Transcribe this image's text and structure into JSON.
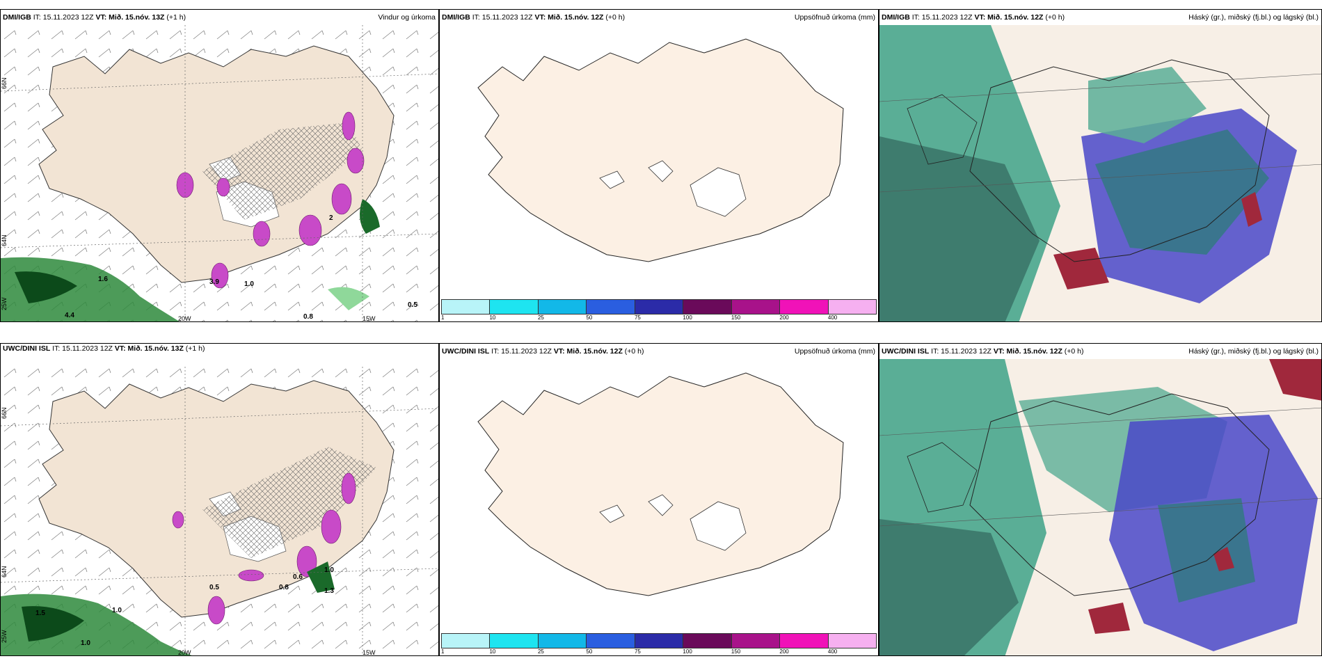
{
  "panels": [
    {
      "model": "DMI/IGB",
      "it": " IT: 15.11.2023 12Z ",
      "vt_label": "VT:",
      "vt": " Mið. 15.nóv. 13Z",
      "lead": " (+1 h)",
      "title": "Vindur og úrkoma"
    },
    {
      "model": "DMI/IGB",
      "it": " IT: 15.11.2023 12Z ",
      "vt_label": "VT:",
      "vt": " Mið. 15.nóv. 12Z",
      "lead": " (+0 h)",
      "title": "Uppsöfnuð úrkoma (mm)"
    },
    {
      "model": "DMI/IGB",
      "it": " IT: 15.11.2023 12Z ",
      "vt_label": "VT:",
      "vt": " Mið. 15.nóv. 12Z",
      "lead": " (+0 h)",
      "title": "Háský (gr.), miðský (fj.bl.) og lágský (bl.)"
    },
    {
      "model": "UWC/DINI ISL",
      "it": " IT: 15.11.2023 12Z ",
      "vt_label": "VT:",
      "vt": " Mið. 15.nóv. 13Z",
      "lead": " (+1 h)",
      "title": ""
    },
    {
      "model": "UWC/DINI ISL",
      "it": " IT: 15.11.2023 12Z ",
      "vt_label": "VT:",
      "vt": " Mið. 15.nóv. 12Z",
      "lead": " (+0 h)",
      "title": "Uppsöfnuð úrkoma (mm)"
    },
    {
      "model": "UWC/DINI ISL",
      "it": " IT: 15.11.2023 12Z ",
      "vt_label": "VT:",
      "vt": " Mið. 15.nóv. 12Z",
      "lead": " (+0 h)",
      "title": "Háský (gr.), miðský (fj.bl.) og lágský (bl.)"
    }
  ],
  "colorbar": {
    "ticks": [
      "1",
      "10",
      "25",
      "50",
      "75",
      "100",
      "150",
      "200",
      "400"
    ],
    "colors": [
      "#b8f4f8",
      "#1ee4f0",
      "#12b8e8",
      "#2a5ee0",
      "#2b2ba8",
      "#6a0a5a",
      "#a8128a",
      "#f012b8",
      "#f6b0f0"
    ]
  },
  "lat_lon_labels": {
    "n66": "66N",
    "n64": "64N",
    "w25": "25W",
    "w20": "20W",
    "w15": "15W"
  },
  "precip_values_top": [
    "4.4",
    "1.6",
    "1.0",
    "0.8",
    "0.5",
    "2",
    "3.9"
  ],
  "precip_values_bottom": [
    "1.5",
    "1.0",
    "1.0",
    "0.8",
    "0.6",
    "1.3",
    "0.5",
    "1.0"
  ],
  "colors": {
    "land": "#f2e4d4",
    "land_plain": "#fcf0e4",
    "green": "#2e8a3c",
    "magenta": "#c84ac8",
    "cloud_green": "#5aae96",
    "cloud_blue": "#4a48c8",
    "cloud_red": "#a0283c"
  }
}
